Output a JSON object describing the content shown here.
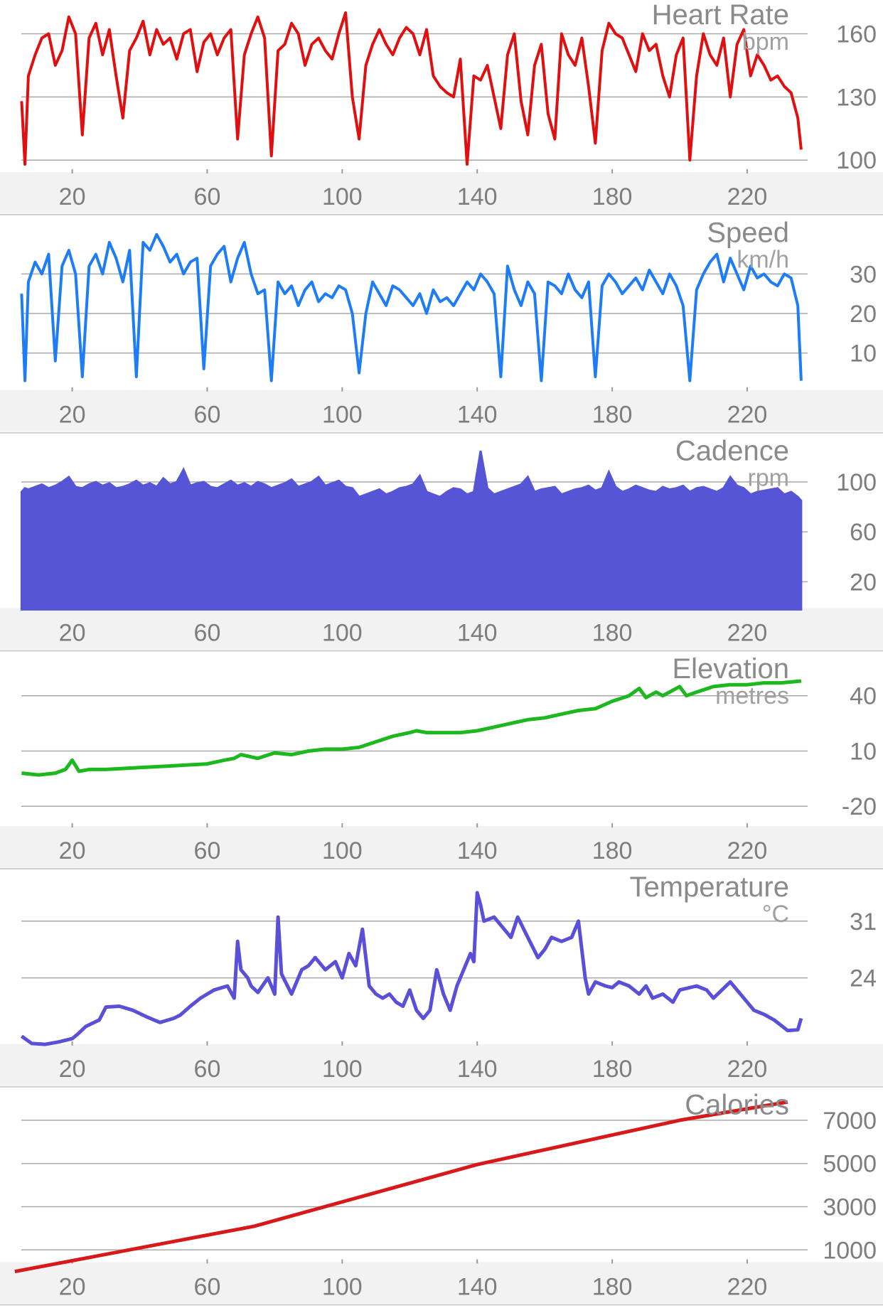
{
  "chart_data": [
    {
      "type": "line",
      "title": "Heart Rate",
      "unit": "bpm",
      "color": "#e01010",
      "ylim": [
        95,
        172
      ],
      "yticks": [
        100,
        130,
        160
      ],
      "xlim": [
        5,
        237
      ],
      "xticks": [
        20,
        60,
        100,
        140,
        180,
        220
      ],
      "grid": true,
      "series": [
        {
          "x": [
            5,
            6,
            7,
            9,
            11,
            13,
            15,
            17,
            19,
            21,
            23,
            25,
            27,
            29,
            31,
            33,
            35,
            37,
            39,
            41,
            43,
            45,
            47,
            49,
            51,
            53,
            55,
            57,
            59,
            61,
            63,
            65,
            67,
            69,
            71,
            73,
            75,
            77,
            79,
            81,
            83,
            85,
            87,
            89,
            91,
            93,
            95,
            97,
            99,
            101,
            103,
            105,
            107,
            109,
            111,
            113,
            115,
            117,
            119,
            121,
            123,
            125,
            127,
            129,
            131,
            133,
            135,
            137,
            139,
            141,
            143,
            145,
            147,
            149,
            151,
            153,
            155,
            157,
            159,
            161,
            163,
            165,
            167,
            169,
            171,
            173,
            175,
            177,
            179,
            181,
            183,
            185,
            187,
            189,
            191,
            193,
            195,
            197,
            199,
            201,
            203,
            205,
            207,
            209,
            211,
            213,
            215,
            217,
            219,
            221,
            223,
            225,
            227,
            229,
            231,
            233,
            235,
            236
          ],
          "y": [
            128,
            98,
            140,
            150,
            158,
            160,
            145,
            152,
            168,
            160,
            112,
            158,
            165,
            150,
            162,
            140,
            120,
            152,
            158,
            166,
            150,
            162,
            155,
            158,
            148,
            160,
            162,
            142,
            156,
            160,
            150,
            158,
            162,
            110,
            150,
            160,
            168,
            158,
            102,
            152,
            155,
            165,
            160,
            145,
            155,
            158,
            152,
            148,
            160,
            170,
            130,
            110,
            145,
            155,
            162,
            155,
            150,
            158,
            163,
            160,
            150,
            162,
            140,
            135,
            132,
            130,
            148,
            98,
            140,
            138,
            145,
            130,
            115,
            150,
            160,
            128,
            112,
            145,
            155,
            122,
            110,
            160,
            150,
            145,
            158,
            135,
            108,
            152,
            165,
            160,
            158,
            150,
            142,
            160,
            152,
            155,
            140,
            130,
            150,
            158,
            100,
            140,
            160,
            150,
            145,
            158,
            130,
            155,
            162,
            140,
            150,
            145,
            138,
            140,
            135,
            132,
            120,
            105
          ]
        }
      ]
    },
    {
      "type": "line",
      "title": "Speed",
      "unit": "km/h",
      "color": "#1e7cf5",
      "ylim": [
        1,
        42
      ],
      "yticks": [
        10,
        20,
        30
      ],
      "xlim": [
        5,
        237
      ],
      "xticks": [
        20,
        60,
        100,
        140,
        180,
        220
      ],
      "grid": true,
      "series": [
        {
          "x": [
            5,
            6,
            7,
            9,
            11,
            13,
            15,
            17,
            19,
            21,
            23,
            25,
            27,
            29,
            31,
            33,
            35,
            37,
            39,
            41,
            43,
            45,
            47,
            49,
            51,
            53,
            55,
            57,
            59,
            61,
            63,
            65,
            67,
            69,
            71,
            73,
            75,
            77,
            79,
            81,
            83,
            85,
            87,
            89,
            91,
            93,
            95,
            97,
            99,
            101,
            103,
            105,
            107,
            109,
            111,
            113,
            115,
            117,
            119,
            121,
            123,
            125,
            127,
            129,
            131,
            133,
            135,
            137,
            139,
            141,
            143,
            145,
            147,
            149,
            151,
            153,
            155,
            157,
            159,
            161,
            163,
            165,
            167,
            169,
            171,
            173,
            175,
            177,
            179,
            181,
            183,
            185,
            187,
            189,
            191,
            193,
            195,
            197,
            199,
            201,
            203,
            205,
            207,
            209,
            211,
            213,
            215,
            217,
            219,
            221,
            223,
            225,
            227,
            229,
            231,
            233,
            235,
            236
          ],
          "y": [
            25,
            3,
            28,
            33,
            30,
            35,
            8,
            32,
            36,
            30,
            4,
            32,
            35,
            30,
            38,
            34,
            28,
            36,
            4,
            38,
            36,
            40,
            37,
            33,
            35,
            30,
            33,
            34,
            6,
            32,
            35,
            37,
            28,
            34,
            38,
            30,
            25,
            26,
            3,
            28,
            25,
            27,
            22,
            26,
            28,
            23,
            25,
            24,
            27,
            26,
            20,
            5,
            20,
            28,
            25,
            22,
            27,
            26,
            24,
            22,
            25,
            20,
            26,
            23,
            24,
            22,
            25,
            28,
            26,
            30,
            28,
            25,
            4,
            32,
            26,
            22,
            28,
            25,
            3,
            28,
            27,
            25,
            30,
            26,
            24,
            28,
            4,
            27,
            30,
            28,
            25,
            27,
            29,
            26,
            31,
            28,
            25,
            30,
            27,
            22,
            3,
            26,
            30,
            33,
            35,
            28,
            34,
            30,
            26,
            32,
            29,
            30,
            28,
            27,
            30,
            29,
            22,
            3
          ],
          "note": ""
        }
      ]
    },
    {
      "type": "area",
      "title": "Cadence",
      "unit": "rpm",
      "color": "#5555d6",
      "ylim": [
        0,
        130
      ],
      "yticks": [
        20,
        60,
        100
      ],
      "xlim": [
        5,
        237
      ],
      "xticks": [
        20,
        60,
        100,
        140,
        180,
        220
      ],
      "grid": true,
      "series": [
        {
          "x": [
            5,
            6,
            7,
            9,
            11,
            13,
            15,
            17,
            19,
            21,
            23,
            25,
            27,
            29,
            31,
            33,
            35,
            37,
            39,
            41,
            43,
            45,
            47,
            49,
            51,
            53,
            55,
            57,
            59,
            61,
            63,
            65,
            67,
            69,
            71,
            73,
            75,
            77,
            79,
            81,
            83,
            85,
            87,
            89,
            91,
            93,
            95,
            97,
            99,
            101,
            103,
            105,
            107,
            109,
            111,
            113,
            115,
            117,
            119,
            121,
            123,
            125,
            127,
            129,
            131,
            133,
            135,
            137,
            139,
            141,
            143,
            145,
            147,
            149,
            151,
            153,
            155,
            157,
            159,
            161,
            163,
            165,
            167,
            169,
            171,
            173,
            175,
            177,
            179,
            181,
            183,
            185,
            187,
            189,
            191,
            193,
            195,
            197,
            199,
            201,
            203,
            205,
            207,
            209,
            211,
            213,
            215,
            217,
            219,
            221,
            223,
            225,
            227,
            229,
            231,
            233,
            235,
            236
          ],
          "y": [
            92,
            95,
            94,
            96,
            98,
            95,
            97,
            100,
            104,
            96,
            95,
            98,
            100,
            97,
            99,
            95,
            96,
            98,
            101,
            97,
            99,
            96,
            103,
            98,
            100,
            110,
            97,
            99,
            100,
            96,
            95,
            98,
            101,
            97,
            99,
            96,
            100,
            98,
            95,
            97,
            99,
            102,
            96,
            98,
            100,
            104,
            97,
            99,
            101,
            96,
            95,
            88,
            90,
            92,
            94,
            90,
            92,
            95,
            96,
            98,
            105,
            92,
            90,
            88,
            92,
            95,
            94,
            90,
            92,
            125,
            95,
            90,
            92,
            94,
            96,
            98,
            104,
            92,
            94,
            95,
            96,
            90,
            92,
            94,
            95,
            97,
            93,
            95,
            108,
            96,
            92,
            94,
            97,
            95,
            93,
            92,
            96,
            94,
            95,
            97,
            92,
            95,
            96,
            94,
            92,
            95,
            104,
            97,
            95,
            90,
            92,
            93,
            94,
            95,
            90,
            92,
            88,
            85
          ]
        }
      ]
    },
    {
      "type": "line",
      "title": "Elevation",
      "unit": "metres",
      "color": "#1db81d",
      "ylim": [
        -30,
        58
      ],
      "yticks": [
        -20,
        10,
        40
      ],
      "xlim": [
        5,
        237
      ],
      "xticks": [
        20,
        60,
        100,
        140,
        180,
        220
      ],
      "grid": true,
      "series": [
        {
          "x": [
            5,
            10,
            15,
            18,
            20,
            22,
            25,
            30,
            40,
            50,
            60,
            65,
            68,
            70,
            75,
            80,
            85,
            90,
            95,
            100,
            105,
            110,
            115,
            120,
            122,
            125,
            130,
            135,
            140,
            145,
            150,
            155,
            160,
            165,
            170,
            175,
            180,
            185,
            188,
            190,
            193,
            195,
            200,
            202,
            205,
            210,
            215,
            220,
            225,
            230,
            236
          ],
          "y": [
            -2,
            -3,
            -2,
            0,
            5,
            -1,
            0,
            0,
            1,
            2,
            3,
            5,
            6,
            8,
            6,
            9,
            8,
            10,
            11,
            11,
            12,
            15,
            18,
            20,
            21,
            20,
            20,
            20,
            21,
            23,
            25,
            27,
            28,
            30,
            32,
            33,
            37,
            40,
            44,
            39,
            42,
            40,
            45,
            40,
            42,
            45,
            46,
            46,
            47,
            47,
            48
          ]
        }
      ]
    },
    {
      "type": "line",
      "title": "Temperature",
      "unit": "°C",
      "color": "#5a50d8",
      "ylim": [
        16,
        36
      ],
      "yticks": [
        24,
        31
      ],
      "xlim": [
        5,
        237
      ],
      "xticks": [
        20,
        60,
        100,
        140,
        180,
        220
      ],
      "grid": true,
      "series": [
        {
          "x": [
            5,
            8,
            12,
            16,
            20,
            22,
            24,
            26,
            28,
            30,
            34,
            38,
            42,
            46,
            50,
            52,
            55,
            58,
            62,
            66,
            68,
            69,
            70,
            72,
            73,
            75,
            78,
            80,
            81,
            82,
            85,
            88,
            90,
            92,
            95,
            98,
            100,
            102,
            104,
            106,
            108,
            110,
            112,
            114,
            116,
            118,
            120,
            122,
            124,
            126,
            128,
            130,
            132,
            134,
            136,
            138,
            139,
            140,
            141,
            142,
            145,
            148,
            150,
            152,
            155,
            158,
            160,
            162,
            165,
            168,
            170,
            172,
            173,
            175,
            178,
            180,
            182,
            185,
            188,
            190,
            192,
            195,
            198,
            200,
            205,
            208,
            210,
            215,
            218,
            220,
            222,
            225,
            228,
            232,
            235,
            236
          ],
          "y": [
            16.8,
            15.9,
            15.8,
            16.1,
            16.5,
            17.2,
            18.0,
            18.4,
            18.8,
            20.4,
            20.5,
            20.0,
            19.2,
            18.5,
            19.0,
            19.4,
            20.5,
            21.5,
            22.5,
            23.0,
            21.5,
            28.5,
            25.0,
            24.0,
            23.0,
            22.2,
            24.0,
            22.0,
            31.5,
            24.5,
            22.0,
            25.0,
            25.5,
            26.5,
            25.0,
            26.0,
            24.0,
            27.0,
            25.5,
            30.0,
            23.0,
            22.0,
            21.5,
            22.0,
            21.0,
            20.5,
            22.5,
            20.0,
            19.0,
            20.0,
            25.0,
            22.0,
            20.0,
            23.0,
            25.0,
            27.0,
            26.0,
            34.5,
            33.0,
            31.0,
            31.5,
            30.0,
            29.0,
            31.5,
            29.0,
            26.5,
            27.5,
            29.0,
            28.5,
            29.0,
            31.0,
            24.0,
            22.0,
            23.5,
            23.0,
            22.8,
            23.5,
            23.0,
            22.0,
            23.0,
            21.5,
            22.0,
            21.0,
            22.5,
            23.0,
            22.5,
            21.5,
            23.5,
            22.0,
            21.0,
            20.0,
            19.5,
            18.8,
            17.5,
            17.6,
            19.0
          ]
        }
      ]
    },
    {
      "type": "line",
      "title": "Calories",
      "unit": "",
      "color": "#d8191a",
      "ylim": [
        500,
        8000
      ],
      "yticks": [
        1000,
        3000,
        5000,
        7000
      ],
      "xlim": [
        5,
        237
      ],
      "xticks": [
        20,
        60,
        100,
        140,
        180,
        220
      ],
      "grid": true,
      "series": [
        {
          "x": [
            3,
            74,
            140,
            200,
            232
          ],
          "y": [
            0,
            2100,
            4950,
            7000,
            7850
          ]
        }
      ]
    }
  ]
}
